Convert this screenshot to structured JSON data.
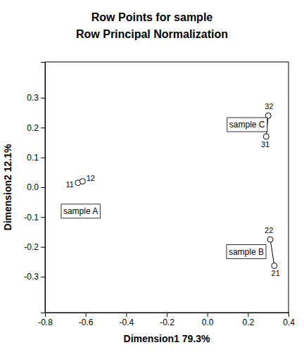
{
  "chart_data": {
    "type": "scatter",
    "title": "Row Points for sample",
    "subtitle": "Row Principal Normalization",
    "x_label": "Dimension1 79.3%",
    "y_label": "Dimension2 12.1%",
    "xlim": [
      -0.8,
      0.4
    ],
    "ylim": [
      -0.42,
      0.42
    ],
    "xticks": [
      -0.8,
      -0.6,
      -0.4,
      -0.2,
      {
        "value": 0.0,
        "label": "0.0"
      },
      0.2,
      0.4
    ],
    "yticks": [
      -0.3,
      -0.2,
      -0.1,
      {
        "value": 0.0,
        "label": "0.0"
      },
      0.1,
      0.2,
      0.3
    ],
    "marker": "circle",
    "line_style": "solid",
    "grid": false,
    "series": [
      {
        "x": [
          -0.638,
          -0.615
        ],
        "values": [
          0.015,
          0.02
        ],
        "labels": [
          "11",
          "12"
        ]
      },
      {
        "x": [
          0.29,
          0.3
        ],
        "values": [
          0.17,
          0.24
        ],
        "labels": [
          "31",
          "32"
        ]
      },
      {
        "x": [
          0.33,
          0.31
        ],
        "values": [
          -0.263,
          -0.175
        ],
        "labels": [
          "21",
          "22"
        ]
      }
    ],
    "annotations": [
      {
        "text": "sample A",
        "x": -0.71,
        "y": -0.082
      },
      {
        "text": "sample B",
        "x": 0.105,
        "y": -0.218
      },
      {
        "text": "sample C",
        "x": 0.108,
        "y": 0.208
      }
    ]
  }
}
